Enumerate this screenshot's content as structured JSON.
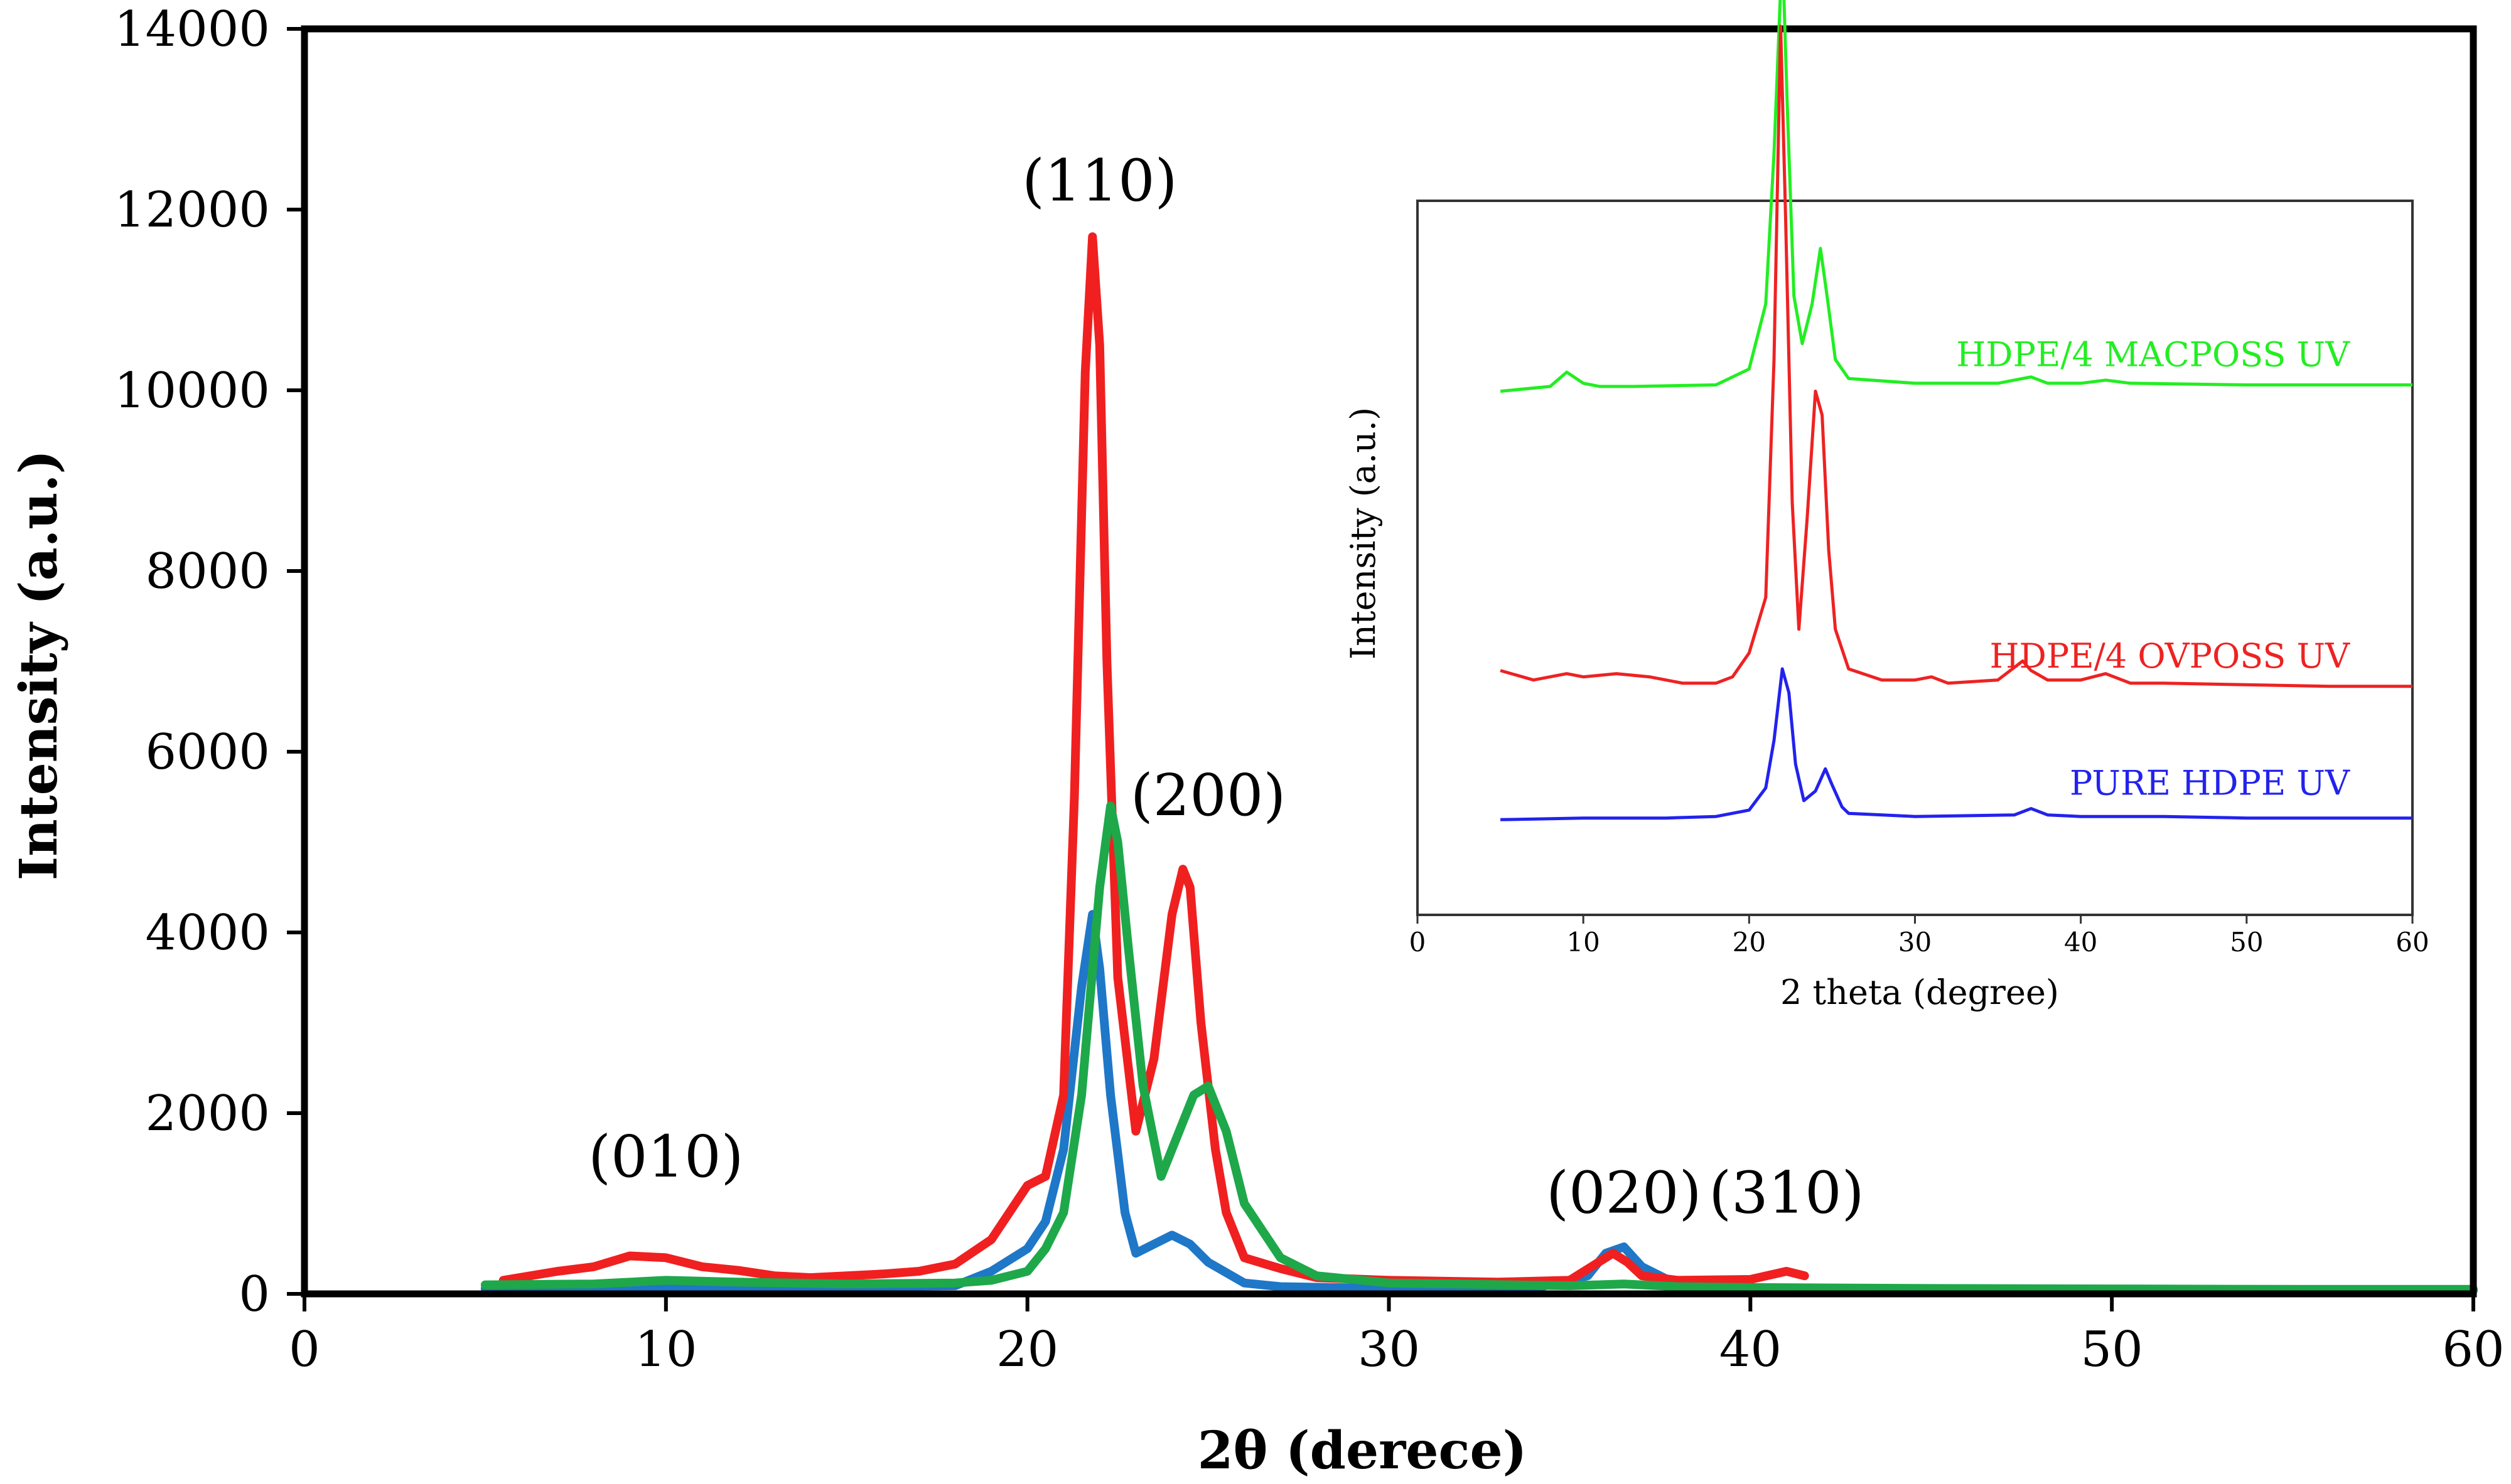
{
  "chart_data": [
    {
      "type": "line",
      "xlabel": "2θ (derece)",
      "ylabel": "Intensity (a.u.)",
      "xlim": [
        0,
        60
      ],
      "ylim": [
        0,
        14000
      ],
      "xticks": [
        0,
        10,
        20,
        30,
        40,
        50,
        60
      ],
      "yticks": [
        0,
        2000,
        4000,
        6000,
        8000,
        10000,
        12000,
        14000
      ],
      "grid": false,
      "annotations": [
        {
          "text": "(010)",
          "x": 10,
          "y": 1300
        },
        {
          "text": "(110)",
          "x": 22,
          "y": 12100
        },
        {
          "text": "(200)",
          "x": 25,
          "y": 5300
        },
        {
          "text": "(020)",
          "x": 36.5,
          "y": 900
        },
        {
          "text": "(310)",
          "x": 41,
          "y": 900
        }
      ],
      "series": [
        {
          "name": "PURE HDPE UV",
          "color": "#1f77c8",
          "x": [
            5,
            8,
            10,
            12,
            15,
            18,
            19,
            20,
            20.5,
            21,
            21.5,
            21.8,
            22,
            22.3,
            22.7,
            23,
            23.5,
            24,
            24.5,
            25,
            26,
            27,
            30,
            34,
            35.5,
            36,
            36.5,
            37,
            38,
            40,
            45,
            50,
            55,
            60
          ],
          "y": [
            60,
            70,
            80,
            70,
            80,
            90,
            250,
            500,
            800,
            1600,
            3400,
            4200,
            3600,
            2200,
            900,
            450,
            550,
            650,
            550,
            350,
            120,
            80,
            60,
            60,
            200,
            450,
            520,
            300,
            100,
            60,
            50,
            40,
            40,
            40
          ]
        },
        {
          "name": "HDPE/4 OVPOSS UV",
          "color": "#f02020",
          "x": [
            5.5,
            7,
            8,
            9,
            10,
            11,
            12,
            13,
            14,
            16,
            17,
            18,
            19,
            20,
            20.5,
            21,
            21.3,
            21.6,
            21.8,
            22,
            22.2,
            22.5,
            23,
            23.5,
            24,
            24.3,
            24.5,
            24.8,
            25.2,
            25.5,
            26,
            27,
            28,
            30,
            33,
            35,
            35.8,
            36.2,
            36.6,
            37,
            38,
            40,
            41,
            41.5
          ],
          "y": [
            150,
            250,
            300,
            420,
            400,
            300,
            260,
            200,
            180,
            220,
            250,
            330,
            600,
            1200,
            1300,
            2200,
            5500,
            10200,
            11700,
            10500,
            7000,
            3500,
            1800,
            2600,
            4200,
            4700,
            4500,
            3000,
            1600,
            900,
            400,
            280,
            180,
            150,
            130,
            150,
            350,
            450,
            350,
            200,
            150,
            160,
            250,
            200
          ]
        },
        {
          "name": "HDPE/4 MACPOSS UV",
          "color": "#1ea84a",
          "x": [
            5,
            8,
            10,
            12,
            15,
            18,
            19,
            20,
            20.5,
            21,
            21.5,
            22,
            22.3,
            22.5,
            22.8,
            23.2,
            23.7,
            24.2,
            24.6,
            25,
            25.5,
            26,
            27,
            28,
            30,
            35,
            36.5,
            38,
            40,
            45,
            50,
            55,
            60
          ],
          "y": [
            100,
            110,
            150,
            130,
            110,
            120,
            150,
            250,
            500,
            900,
            2200,
            4500,
            5400,
            5000,
            3800,
            2300,
            1300,
            1800,
            2200,
            2300,
            1800,
            1000,
            400,
            200,
            120,
            90,
            110,
            80,
            70,
            60,
            55,
            50,
            50
          ]
        }
      ]
    },
    {
      "type": "line",
      "role": "inset",
      "xlabel": "2 theta (degree)",
      "ylabel": "Intensity (a.u.)",
      "xlim": [
        0,
        60
      ],
      "xticks": [
        0,
        10,
        20,
        30,
        40,
        50,
        60
      ],
      "series": [
        {
          "name": "HDPE/4 MACPOSS UV",
          "color": "#22ee22",
          "offset": 330,
          "x": [
            5,
            8,
            9,
            10,
            11,
            13,
            18,
            20,
            21,
            21.5,
            22,
            22.3,
            22.7,
            23.2,
            23.8,
            24.3,
            24.7,
            25.2,
            26,
            30,
            35,
            37,
            38,
            40,
            41.5,
            43,
            50,
            55,
            60
          ],
          "y": [
            0,
            3,
            12,
            5,
            3,
            3,
            4,
            14,
            55,
            150,
            280,
            180,
            60,
            30,
            55,
            90,
            60,
            20,
            8,
            5,
            5,
            9,
            5,
            5,
            7,
            5,
            4,
            4,
            4
          ]
        },
        {
          "name": "HDPE/4 OVPOSS UV",
          "color": "#ee2222",
          "offset": 140,
          "x": [
            5,
            7,
            9,
            10,
            12,
            14,
            16,
            18,
            19,
            20,
            21,
            21.5,
            21.9,
            22.2,
            22.6,
            23,
            23.5,
            24,
            24.4,
            24.8,
            25.2,
            26,
            28,
            30,
            31,
            32,
            35,
            36.5,
            37,
            38,
            40,
            41.5,
            43,
            45,
            50,
            55,
            60
          ],
          "y": [
            14,
            8,
            12,
            10,
            12,
            10,
            6,
            6,
            10,
            25,
            60,
            210,
            420,
            300,
            120,
            40,
            110,
            190,
            175,
            90,
            40,
            15,
            8,
            8,
            10,
            6,
            8,
            20,
            14,
            8,
            8,
            12,
            6,
            6,
            5,
            4,
            4
          ]
        },
        {
          "name": "PURE HDPE UV",
          "color": "#2222ee",
          "offset": 60,
          "x": [
            5,
            10,
            15,
            18,
            20,
            21,
            21.5,
            22,
            22.4,
            22.8,
            23.3,
            24,
            24.6,
            25,
            25.6,
            26,
            30,
            36,
            37,
            38,
            40,
            45,
            50,
            55,
            60
          ],
          "y": [
            0,
            1,
            1,
            2,
            6,
            20,
            50,
            95,
            80,
            35,
            12,
            18,
            32,
            22,
            8,
            4,
            2,
            3,
            7,
            3,
            2,
            2,
            1,
            1,
            1
          ]
        }
      ]
    }
  ]
}
